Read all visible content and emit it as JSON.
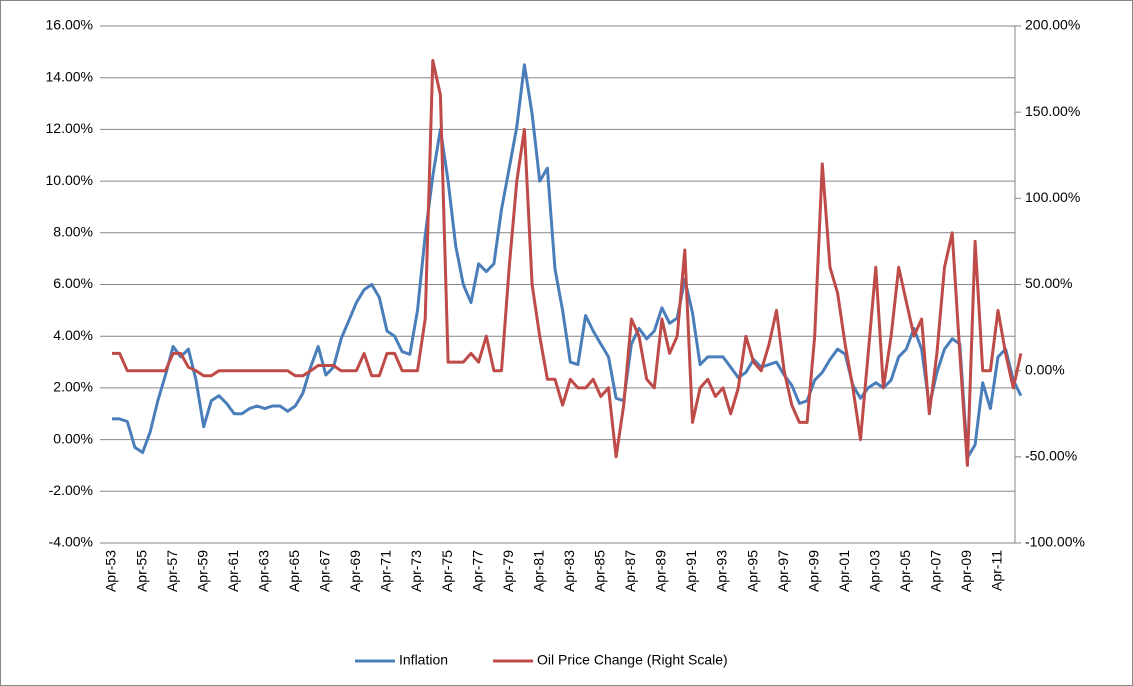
{
  "chart_data": {
    "type": "line",
    "categories": [
      "Apr-53",
      null,
      null,
      null,
      "Apr-55",
      null,
      null,
      null,
      "Apr-57",
      null,
      null,
      null,
      "Apr-59",
      null,
      null,
      null,
      "Apr-61",
      null,
      null,
      null,
      "Apr-63",
      null,
      null,
      null,
      "Apr-65",
      null,
      null,
      null,
      "Apr-67",
      null,
      null,
      null,
      "Apr-69",
      null,
      null,
      null,
      "Apr-71",
      null,
      null,
      null,
      "Apr-73",
      null,
      null,
      null,
      "Apr-75",
      null,
      null,
      null,
      "Apr-77",
      null,
      null,
      null,
      "Apr-79",
      null,
      null,
      null,
      "Apr-81",
      null,
      null,
      null,
      "Apr-83",
      null,
      null,
      null,
      "Apr-85",
      null,
      null,
      null,
      "Apr-87",
      null,
      null,
      null,
      "Apr-89",
      null,
      null,
      null,
      "Apr-91",
      null,
      null,
      null,
      "Apr-93",
      null,
      null,
      null,
      "Apr-95",
      null,
      null,
      null,
      "Apr-97",
      null,
      null,
      null,
      "Apr-99",
      null,
      null,
      null,
      "Apr-01",
      null,
      null,
      null,
      "Apr-03",
      null,
      null,
      null,
      "Apr-05",
      null,
      null,
      null,
      "Apr-07",
      null,
      null,
      null,
      "Apr-09",
      null,
      null,
      null,
      "Apr-11",
      null,
      null,
      null
    ],
    "series": [
      {
        "name": "Inflation",
        "color": "#4a7ebb",
        "values": [
          0.8,
          0.8,
          0.7,
          -0.3,
          -0.5,
          0.3,
          1.5,
          2.5,
          3.6,
          3.2,
          3.5,
          2.3,
          0.5,
          1.5,
          1.7,
          1.4,
          1.0,
          1.0,
          1.2,
          1.3,
          1.2,
          1.3,
          1.3,
          1.1,
          1.3,
          1.8,
          2.8,
          3.6,
          2.5,
          2.8,
          3.9,
          4.6,
          5.3,
          5.8,
          6.0,
          5.5,
          4.2,
          4.0,
          3.4,
          3.3,
          5.0,
          7.9,
          10.2,
          12.0,
          10.0,
          7.5,
          6.0,
          5.3,
          6.8,
          6.5,
          6.8,
          8.9,
          10.5,
          12.1,
          14.5,
          12.6,
          10.0,
          10.5,
          6.6,
          5.0,
          3.0,
          2.9,
          4.8,
          4.2,
          3.7,
          3.2,
          1.6,
          1.5,
          3.7,
          4.3,
          3.9,
          4.2,
          5.1,
          4.5,
          4.7,
          6.2,
          4.9,
          2.9,
          3.2,
          3.2,
          3.2,
          2.8,
          2.4,
          2.6,
          3.1,
          2.8,
          2.9,
          3.0,
          2.5,
          2.1,
          1.4,
          1.5,
          2.3,
          2.6,
          3.1,
          3.5,
          3.3,
          2.1,
          1.6,
          2.0,
          2.2,
          2.0,
          2.3,
          3.2,
          3.5,
          4.3,
          3.5,
          1.3,
          2.6,
          3.5,
          3.9,
          3.7,
          -0.7,
          -0.2,
          2.2,
          1.2,
          3.2,
          3.5,
          2.3,
          1.7
        ]
      },
      {
        "name": "Oil Price Change (Right Scale)",
        "color": "#be4b48",
        "axis": "y2",
        "values": [
          10,
          10,
          0,
          0,
          0,
          0,
          0,
          0,
          10,
          10,
          2,
          0,
          -3,
          -3,
          0,
          0,
          0,
          0,
          0,
          0,
          0,
          0,
          0,
          0,
          -3,
          -3,
          0,
          3,
          3,
          3,
          0,
          0,
          0,
          10,
          -3,
          -3,
          10,
          10,
          0,
          0,
          0,
          30,
          180,
          160,
          5,
          5,
          5,
          10,
          5,
          20,
          0,
          0,
          60,
          110,
          140,
          50,
          20,
          -5,
          -5,
          -20,
          -5,
          -10,
          -10,
          -5,
          -15,
          -10,
          -50,
          -20,
          30,
          20,
          -5,
          -10,
          30,
          10,
          20,
          70,
          -30,
          -10,
          -5,
          -15,
          -10,
          -25,
          -10,
          20,
          5,
          0,
          15,
          35,
          0,
          -20,
          -30,
          -30,
          20,
          120,
          60,
          45,
          15,
          -10,
          -40,
          10,
          60,
          -10,
          20,
          60,
          40,
          20,
          30,
          -25,
          10,
          60,
          80,
          10,
          -55,
          75,
          0,
          0,
          35,
          10,
          -10,
          10
        ]
      }
    ],
    "ylim": [
      -4,
      16
    ],
    "yticks": [
      {
        "value": -4,
        "label": "-4.00%"
      },
      {
        "value": -2,
        "label": "-2.00%"
      },
      {
        "value": 0,
        "label": "0.00%"
      },
      {
        "value": 2,
        "label": "2.00%"
      },
      {
        "value": 4,
        "label": "4.00%"
      },
      {
        "value": 6,
        "label": "6.00%"
      },
      {
        "value": 8,
        "label": "8.00%"
      },
      {
        "value": 10,
        "label": "10.00%"
      },
      {
        "value": 12,
        "label": "12.00%"
      },
      {
        "value": 14,
        "label": "14.00%"
      },
      {
        "value": 16,
        "label": "16.00%"
      }
    ],
    "y2lim": [
      -100,
      200
    ],
    "y2ticks": [
      {
        "value": -100,
        "label": "-100.00%"
      },
      {
        "value": -50,
        "label": "-50.00%"
      },
      {
        "value": 0,
        "label": "0.00%"
      },
      {
        "value": 50,
        "label": "50.00%"
      },
      {
        "value": 100,
        "label": "100.00%"
      },
      {
        "value": 150,
        "label": "150.00%"
      },
      {
        "value": 200,
        "label": "200.00%"
      }
    ],
    "grid": true,
    "legend": "bottom"
  }
}
